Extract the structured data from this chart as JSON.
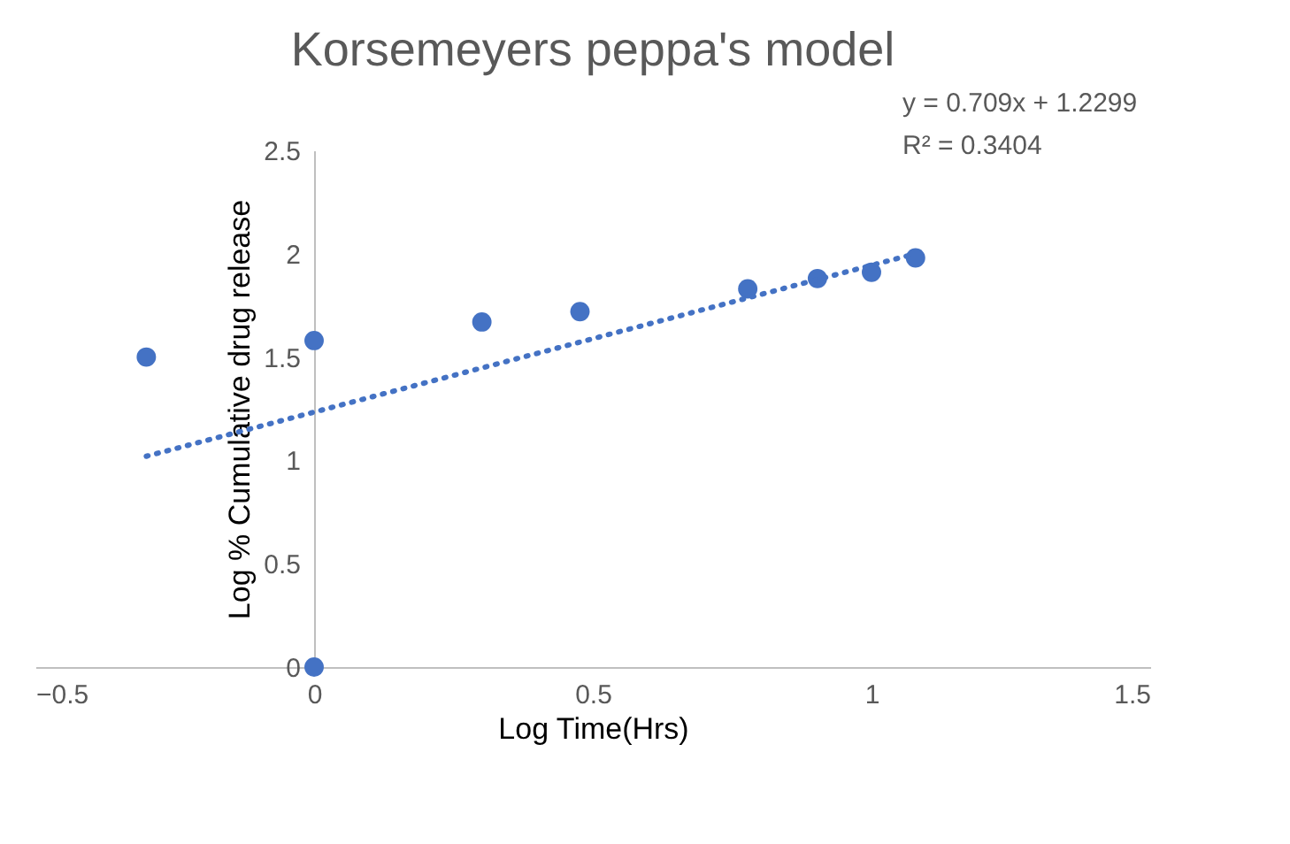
{
  "chart_data": {
    "type": "scatter",
    "title": "Korsemeyers peppa's model",
    "xlabel": "Log Time(Hrs)",
    "ylabel": "Log % Cumulative drug release",
    "series": [
      {
        "color": "#4472c4",
        "x": [
          -0.301,
          0,
          0,
          0.301,
          0.477,
          0.778,
          0.903,
          1.0,
          1.079
        ],
        "values": [
          1.5,
          1.58,
          0,
          1.67,
          1.72,
          1.83,
          1.88,
          1.91,
          1.98
        ],
        "marker": "circle"
      },
      {
        "type": "line",
        "color": "#4472c4",
        "x": [
          -0.301,
          1.079
        ],
        "values": [
          1.02,
          2.0
        ],
        "line_style": "dotted"
      }
    ],
    "annotations": [
      "y = 0.709x + 1.2299",
      "R² = 0.3404"
    ],
    "xlim": [
      -0.5,
      1.5
    ],
    "xticks": [
      -0.5,
      0,
      0.5,
      1,
      1.5
    ],
    "ylim": [
      0,
      2.5
    ],
    "yticks": [
      0,
      0.5,
      1,
      1.5,
      2,
      2.5
    ],
    "grid": false,
    "legend": false
  }
}
